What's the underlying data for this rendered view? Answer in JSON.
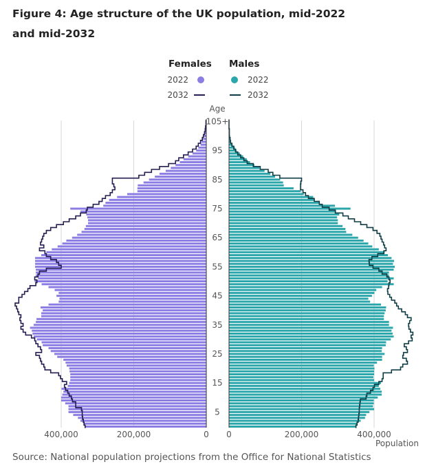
{
  "title": "Figure 4: Age structure of the UK population, mid-2022 and mid-2032",
  "source": "Source: National population projections from the Office for National Statistics",
  "chart_data": {
    "type": "bar",
    "subtype": "population-pyramid",
    "title": "Figure 4: Age structure of the UK population, mid-2022 and mid-2032",
    "ylabel": "Age",
    "xlabel": "Population",
    "x_ticks_left": [
      "400,000",
      "200,000",
      "0"
    ],
    "x_ticks_right": [
      "0",
      "200,000",
      "400,000"
    ],
    "x_tick_values": [
      0,
      200000,
      400000
    ],
    "age_ticks": [
      "5",
      "15",
      "25",
      "35",
      "45",
      "55",
      "65",
      "75",
      "85",
      "95",
      "105+"
    ],
    "age_tick_values": [
      5,
      15,
      25,
      35,
      45,
      55,
      65,
      75,
      85,
      95,
      105
    ],
    "xlim": [
      0,
      500000
    ],
    "grid": true,
    "legend": {
      "position": "top",
      "groups": [
        {
          "heading": "Females",
          "items": [
            {
              "label": "2022",
              "mark": "dot"
            },
            {
              "label": "2032",
              "mark": "line"
            }
          ]
        },
        {
          "heading": "Males",
          "items": [
            {
              "label": "2022",
              "mark": "dot"
            },
            {
              "label": "2032",
              "mark": "line"
            }
          ]
        }
      ]
    },
    "colors": {
      "females_2022": "#8b7de3",
      "females_2032": "#241d4f",
      "males_2022": "#2ba6ab",
      "males_2032": "#0f3d45",
      "grid": "#d6d6d6"
    },
    "ages": "0 to 105+, single years",
    "series": [
      {
        "name": "Females 2022",
        "style": "bars",
        "values": [
          334000,
          337000,
          347000,
          354000,
          367000,
          380000,
          380000,
          380000,
          389000,
          400000,
          400000,
          397000,
          394000,
          399000,
          382000,
          378000,
          375000,
          375000,
          375000,
          377000,
          378000,
          385000,
          388000,
          394000,
          411000,
          419000,
          429000,
          435000,
          451000,
          454000,
          467000,
          476000,
          479000,
          481000,
          486000,
          476000,
          470000,
          468000,
          455000,
          455000,
          451000,
          457000,
          435000,
          407000,
          405000,
          413000,
          407000,
          418000,
          435000,
          454000,
          473000,
          464000,
          470000,
          470000,
          470000,
          472000,
          472000,
          472000,
          472000,
          455000,
          441000,
          426000,
          410000,
          397000,
          386000,
          370000,
          356000,
          344000,
          336000,
          332000,
          326000,
          326000,
          328000,
          331000,
          347000,
          375000,
          284000,
          278000,
          268000,
          246000,
          218000,
          190000,
          190000,
          189000,
          173000,
          158000,
          142000,
          129000,
          112000,
          98000,
          85000,
          73000,
          63000,
          50000,
          38000,
          28000,
          22000,
          16000,
          13000,
          9000,
          6000,
          4000,
          3000,
          2000,
          1000,
          1000
        ]
      },
      {
        "name": "Females 2032",
        "style": "step-line",
        "values": [
          334000,
          337000,
          339000,
          341000,
          342000,
          342000,
          344000,
          360000,
          360000,
          369000,
          372000,
          378000,
          382000,
          388000,
          391000,
          385000,
          397000,
          402000,
          407000,
          429000,
          445000,
          448000,
          454000,
          457000,
          460000,
          470000,
          454000,
          457000,
          464000,
          470000,
          473000,
          482000,
          498000,
          505000,
          511000,
          505000,
          511000,
          514000,
          511000,
          517000,
          520000,
          523000,
          527000,
          517000,
          517000,
          508000,
          501000,
          492000,
          486000,
          470000,
          467000,
          473000,
          464000,
          460000,
          441000,
          400000,
          407000,
          413000,
          429000,
          441000,
          445000,
          460000,
          448000,
          457000,
          454000,
          451000,
          448000,
          441000,
          429000,
          413000,
          394000,
          378000,
          360000,
          347000,
          331000,
          328000,
          312000,
          296000,
          287000,
          278000,
          265000,
          259000,
          252000,
          255000,
          259000,
          259000,
          186000,
          170000,
          151000,
          129000,
          104000,
          85000,
          76000,
          63000,
          50000,
          38000,
          28000,
          22000,
          16000,
          11000,
          8000,
          5000,
          3000,
          2000,
          1000,
          1000
        ]
      },
      {
        "name": "Males 2022",
        "style": "bars",
        "values": [
          350000,
          354000,
          363000,
          375000,
          378000,
          387000,
          400000,
          397000,
          399000,
          399000,
          410000,
          421000,
          421000,
          417000,
          413000,
          419000,
          400000,
          398000,
          400000,
          400000,
          401000,
          399000,
          408000,
          422000,
          422000,
          429000,
          421000,
          422000,
          432000,
          433000,
          446000,
          454000,
          451000,
          448000,
          452000,
          441000,
          441000,
          427000,
          427000,
          429000,
          432000,
          433000,
          419000,
          389000,
          384000,
          394000,
          401000,
          406000,
          422000,
          454000,
          437000,
          454000,
          441000,
          441000,
          454000,
          457000,
          452000,
          455000,
          448000,
          438000,
          429000,
          413000,
          395000,
          384000,
          371000,
          356000,
          340000,
          323000,
          321000,
          313000,
          300000,
          300000,
          298000,
          304000,
          295000,
          335000,
          292000,
          250000,
          235000,
          232000,
          206000,
          198000,
          178000,
          151000,
          149000,
          141000,
          127000,
          114000,
          98000,
          84000,
          70000,
          58000,
          49000,
          39000,
          30000,
          21000,
          16000,
          10000,
          6000,
          4000,
          3000,
          2000,
          1000,
          1000,
          1000,
          1000
        ]
      },
      {
        "name": "Males 2032",
        "style": "step-line",
        "values": [
          350000,
          353000,
          356000,
          357000,
          358000,
          359000,
          359000,
          360000,
          361000,
          362000,
          378000,
          380000,
          390000,
          397000,
          401000,
          413000,
          422000,
          425000,
          425000,
          448000,
          473000,
          479000,
          492000,
          489000,
          479000,
          481000,
          492000,
          489000,
          483000,
          495000,
          505000,
          502000,
          507000,
          500000,
          496000,
          495000,
          498000,
          502000,
          492000,
          486000,
          476000,
          467000,
          462000,
          457000,
          448000,
          443000,
          438000,
          437000,
          440000,
          441000,
          444000,
          441000,
          435000,
          422000,
          413000,
          397000,
          387000,
          386000,
          394000,
          410000,
          427000,
          433000,
          429000,
          426000,
          422000,
          419000,
          416000,
          408000,
          397000,
          380000,
          363000,
          346000,
          329000,
          314000,
          293000,
          276000,
          257000,
          249000,
          235000,
          219000,
          211000,
          204000,
          197000,
          197000,
          198000,
          200000,
          140000,
          121000,
          108000,
          86000,
          67000,
          50000,
          41000,
          32000,
          24000,
          18000,
          13000,
          8000,
          4000,
          3000,
          1000,
          1000,
          1000,
          0,
          0,
          0
        ]
      }
    ]
  }
}
